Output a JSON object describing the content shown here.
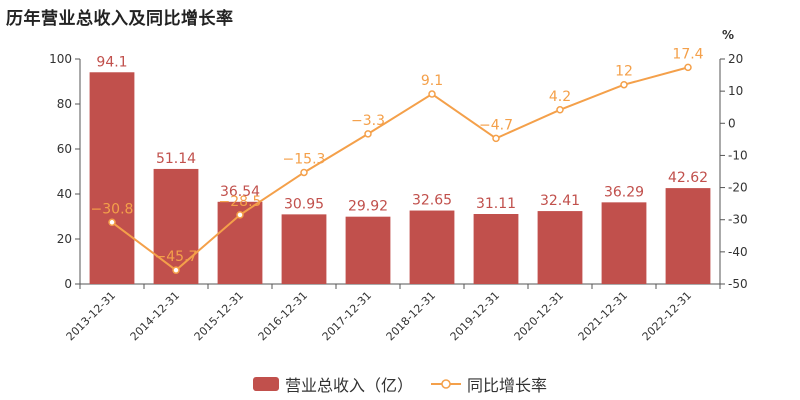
{
  "colors": {
    "bar": "#c1504c",
    "line": "#f4a04a",
    "axis_text": "#333333",
    "axis_line": "#555555"
  },
  "chart_data": {
    "type": "bar+line",
    "title": "历年营业总收入及同比增长率",
    "categories": [
      "2013-12-31",
      "2014-12-31",
      "2015-12-31",
      "2016-12-31",
      "2017-12-31",
      "2018-12-31",
      "2019-12-31",
      "2020-12-31",
      "2021-12-31",
      "2022-12-31"
    ],
    "series": [
      {
        "name": "营业总收入（亿）",
        "type": "bar",
        "axis": "left",
        "values": [
          94.1,
          51.14,
          36.54,
          30.95,
          29.92,
          32.65,
          31.11,
          32.41,
          36.29,
          42.62
        ]
      },
      {
        "name": "同比增长率",
        "type": "line",
        "axis": "right",
        "values": [
          -30.8,
          -45.7,
          -28.5,
          -15.3,
          -3.3,
          9.1,
          -4.7,
          4.2,
          12,
          17.4
        ]
      }
    ],
    "left_axis": {
      "ylim": [
        0,
        100
      ],
      "ticks": [
        0,
        20,
        40,
        60,
        80,
        100
      ]
    },
    "right_axis": {
      "ylim": [
        -50,
        20
      ],
      "ticks": [
        -50,
        -40,
        -30,
        -20,
        -10,
        0,
        10,
        20
      ],
      "unit": "%"
    },
    "legend_position": "bottom-center",
    "grid": false
  }
}
